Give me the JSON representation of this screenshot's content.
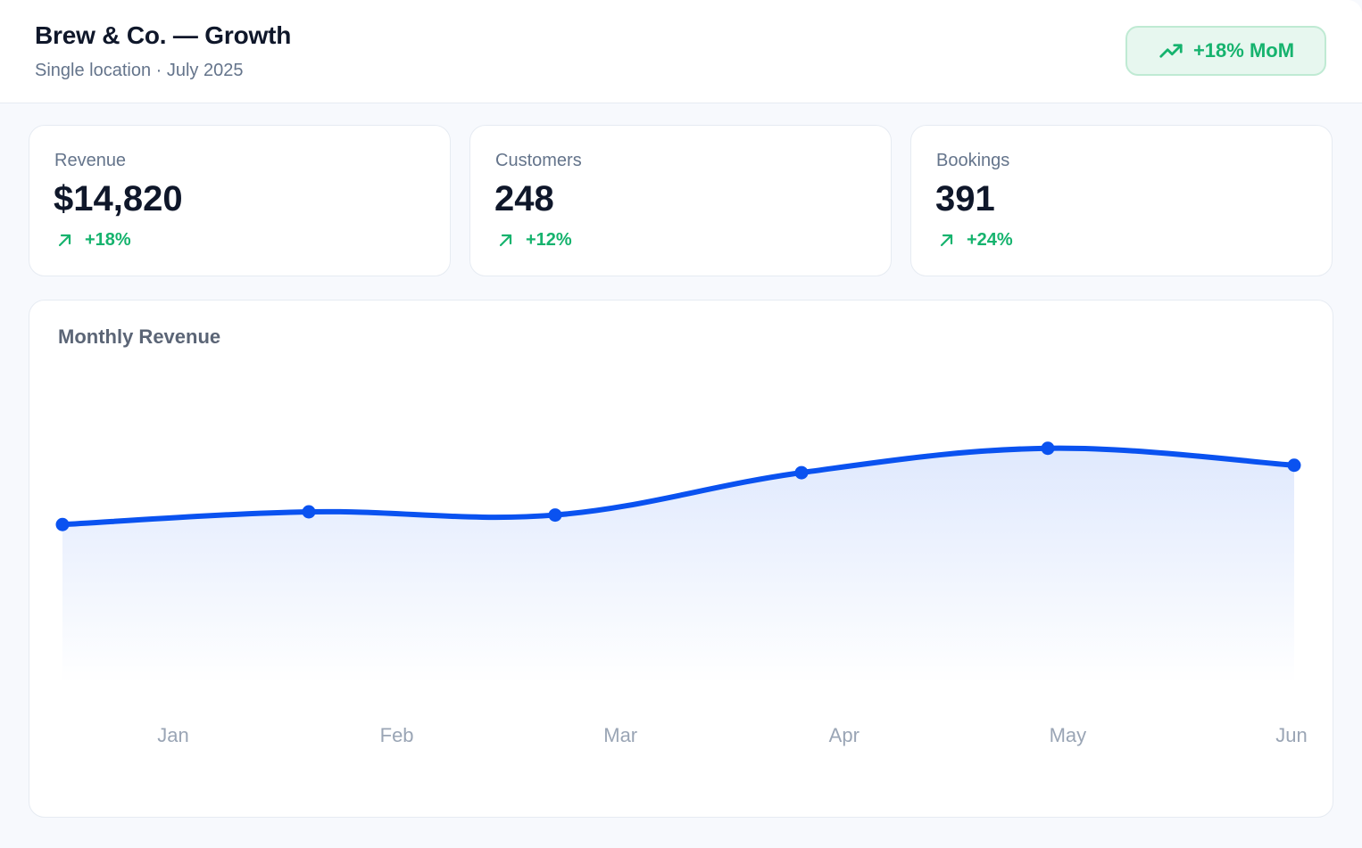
{
  "header": {
    "title": "Brew & Co. — Growth",
    "subtitle": "Single location · July 2025",
    "badge": {
      "label": "+18% MoM",
      "icon": "trending-up-icon",
      "color": "#16b36e"
    }
  },
  "kpis": [
    {
      "label": "Revenue",
      "value": "$14,820",
      "delta": "+18%",
      "icon": "arrow-up-right-icon"
    },
    {
      "label": "Customers",
      "value": "248",
      "delta": "+12%",
      "icon": "arrow-up-right-icon"
    },
    {
      "label": "Bookings",
      "value": "391",
      "delta": "+24%",
      "icon": "arrow-up-right-icon"
    }
  ],
  "colors": {
    "accent": "#0a52f0",
    "positive": "#16b36e",
    "muted_text": "#64748b"
  },
  "chart_data": {
    "type": "area",
    "title": "Monthly Revenue",
    "categories": [
      "Jan",
      "Feb",
      "Mar",
      "Apr",
      "May",
      "Jun"
    ],
    "series": [
      {
        "values": [
          9000,
          9600,
          9450,
          11450,
          12600,
          11800
        ]
      }
    ],
    "ylim": [
      0,
      16000
    ],
    "grid": false,
    "legend": "none",
    "smooth": true,
    "color": "#0a52f0"
  }
}
